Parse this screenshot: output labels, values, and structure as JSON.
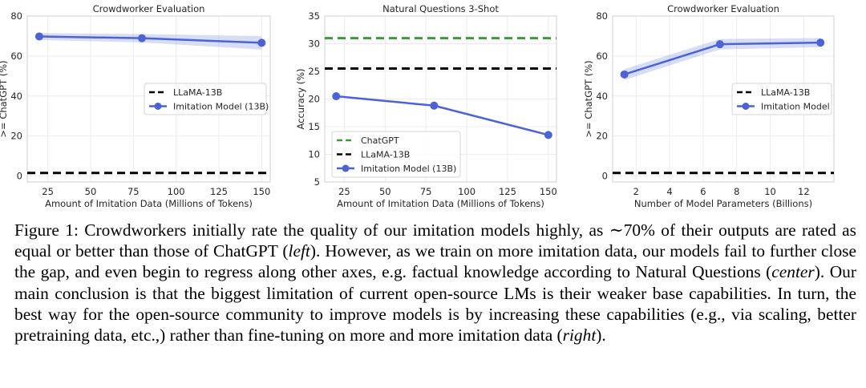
{
  "chart_data": [
    {
      "type": "line",
      "title": "Crowdworker Evaluation",
      "xlabel": "Amount of Imitation Data (Millions of Tokens)",
      "ylabel": ">= ChatGPT (%)",
      "xlim": [
        13,
        155
      ],
      "ylim": [
        -3,
        80
      ],
      "xticks": [
        "25",
        "50",
        "75",
        "100",
        "125",
        "150"
      ],
      "xtick_values": [
        25,
        50,
        75,
        100,
        125,
        150
      ],
      "yticks": [
        "0",
        "20",
        "40",
        "60",
        "80"
      ],
      "ytick_values": [
        0,
        20,
        40,
        60,
        80
      ],
      "grid": true,
      "legend_position": "center-right",
      "series": [
        {
          "name": "LLaMA-13B",
          "style": "dashed",
          "color": "#000000",
          "x": [
            13,
            155
          ],
          "values": [
            1.5,
            1.5
          ]
        },
        {
          "name": "Imitation Model (13B)",
          "style": "line-markers",
          "color": "#4c63d6",
          "x": [
            20,
            80,
            150
          ],
          "values": [
            69.8,
            68.9,
            66.6
          ],
          "band_upper": [
            71.5,
            71.0,
            70.0
          ],
          "band_lower": [
            68.0,
            66.8,
            63.2
          ]
        }
      ]
    },
    {
      "type": "line",
      "title": "Natural Questions 3-Shot",
      "xlabel": "Amount of Imitation Data (Millions of Tokens)",
      "ylabel": "Accuracy (%)",
      "xlim": [
        13,
        155
      ],
      "ylim": [
        5,
        35
      ],
      "xticks": [
        "25",
        "50",
        "75",
        "100",
        "125",
        "150"
      ],
      "xtick_values": [
        25,
        50,
        75,
        100,
        125,
        150
      ],
      "yticks": [
        "5",
        "10",
        "15",
        "20",
        "25",
        "30",
        "35"
      ],
      "ytick_values": [
        5,
        10,
        15,
        20,
        25,
        30,
        35
      ],
      "grid": true,
      "legend_position": "lower-left",
      "series": [
        {
          "name": "ChatGPT",
          "style": "dashed",
          "color": "#3d9a37",
          "x": [
            13,
            155
          ],
          "values": [
            31.0,
            31.0
          ]
        },
        {
          "name": "LLaMA-13B",
          "style": "dashed",
          "color": "#000000",
          "x": [
            13,
            155
          ],
          "values": [
            25.5,
            25.5
          ]
        },
        {
          "name": "Imitation Model (13B)",
          "style": "line-markers",
          "color": "#4c63d6",
          "x": [
            20,
            80,
            150
          ],
          "values": [
            20.5,
            18.8,
            13.5
          ]
        }
      ]
    },
    {
      "type": "line",
      "title": "Crowdworker Evaluation",
      "xlabel": "Number of Model Parameters (Billions)",
      "ylabel": ">= ChatGPT (%)",
      "xlim": [
        0.6,
        13.8
      ],
      "ylim": [
        -3,
        80
      ],
      "xticks": [
        "2",
        "4",
        "6",
        "8",
        "10",
        "12"
      ],
      "xtick_values": [
        2,
        4,
        6,
        8,
        10,
        12
      ],
      "yticks": [
        "0",
        "20",
        "40",
        "60",
        "80"
      ],
      "ytick_values": [
        0,
        20,
        40,
        60,
        80
      ],
      "grid": true,
      "legend_position": "center-right",
      "series": [
        {
          "name": "LLaMA-13B",
          "style": "dashed",
          "color": "#000000",
          "x": [
            0.6,
            13.8
          ],
          "values": [
            1.5,
            1.5
          ]
        },
        {
          "name": "Imitation Model",
          "style": "line-markers",
          "color": "#4c63d6",
          "x": [
            1.3,
            7,
            13
          ],
          "values": [
            50.8,
            65.9,
            66.7
          ],
          "band_upper": [
            53.5,
            68.5,
            69.0
          ],
          "band_lower": [
            48.0,
            63.3,
            64.4
          ]
        }
      ]
    }
  ],
  "caption": {
    "seg1": "Figure 1: Crowdworkers initially rate the quality of our imitation models highly, as ∼70% of their outputs are rated as equal or better than those of ChatGPT (",
    "seg1_em": "left",
    "seg2": "). However, as we train on more imitation data, our models fail to further close the gap, and even begin to regress along other axes, e.g. factual knowledge according to Natural Questions (",
    "seg2_em": "center",
    "seg3": "). Our main conclusion is that the biggest limitation of current open-source LMs is their weaker base capabilities. In turn, the best way for the open-source community to improve models is by increasing these capabilities (e.g., via scaling, better pretraining data, etc.,) rather than fine-tuning on more and more imitation data (",
    "seg3_em": "right",
    "seg4": ")."
  }
}
